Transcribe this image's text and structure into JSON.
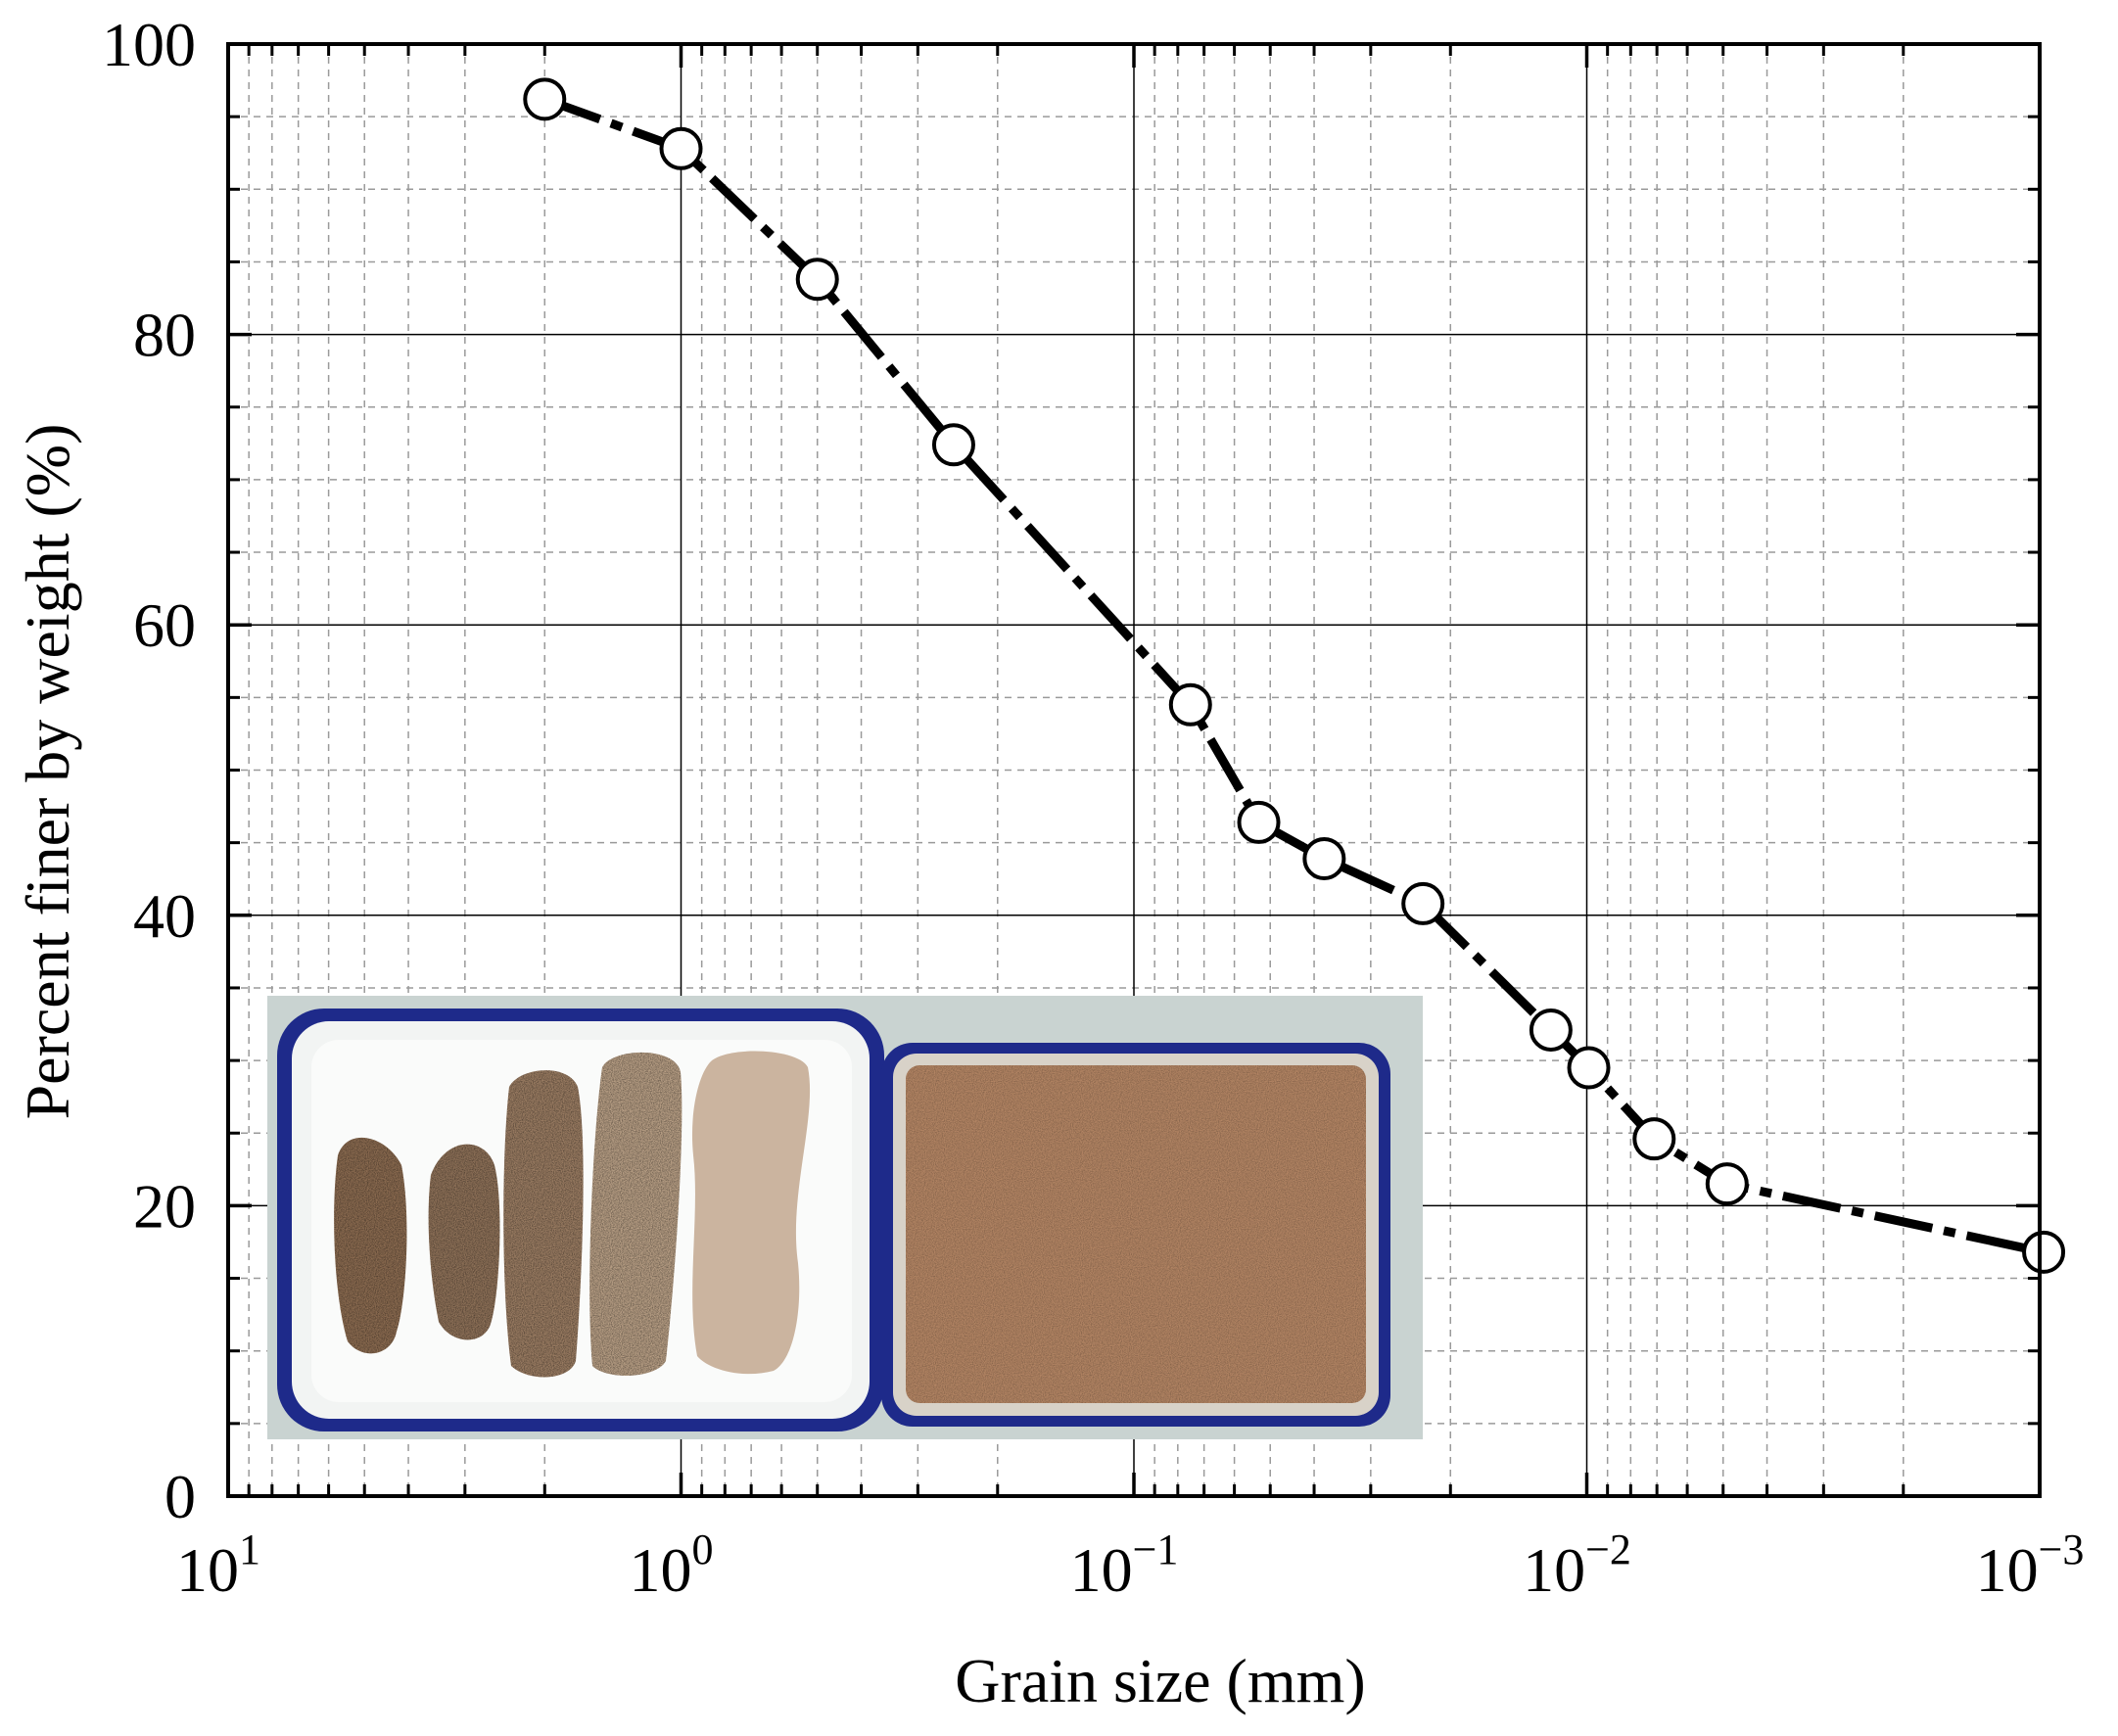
{
  "chart_data": {
    "type": "scatter",
    "title": "",
    "xlabel": "Grain size (mm)",
    "ylabel": "Percent finer by weight (%)",
    "xscale": "log",
    "x_reversed": true,
    "xlim": [
      10,
      0.001
    ],
    "ylim": [
      0,
      100
    ],
    "x_ticks": [
      {
        "value": 10,
        "base": "10",
        "exp": "1"
      },
      {
        "value": 1,
        "base": "10",
        "exp": "0"
      },
      {
        "value": 0.1,
        "base": "10",
        "exp": "−1"
      },
      {
        "value": 0.01,
        "base": "10",
        "exp": "−2"
      },
      {
        "value": 0.001,
        "base": "10",
        "exp": "−3"
      }
    ],
    "y_ticks": [
      {
        "value": 0,
        "label": "0"
      },
      {
        "value": 20,
        "label": "20"
      },
      {
        "value": 40,
        "label": "40"
      },
      {
        "value": 60,
        "label": "60"
      },
      {
        "value": 80,
        "label": "80"
      },
      {
        "value": 100,
        "label": "100"
      }
    ],
    "grid": true,
    "marker": "open-circle",
    "line_style": "dash-dot",
    "series": [
      {
        "x": [
          2.0,
          1.0,
          0.5,
          0.25,
          0.075,
          0.053,
          0.038,
          0.023,
          0.012,
          0.0099,
          0.0071,
          0.0049,
          0.00098
        ],
        "y": [
          96.2,
          92.8,
          83.8,
          72.4,
          54.5,
          46.4,
          43.9,
          40.8,
          32.1,
          29.5,
          24.6,
          21.5,
          16.8
        ]
      }
    ],
    "inset": {
      "description_icon": "photo-of-soil-samples-in-trays"
    }
  }
}
